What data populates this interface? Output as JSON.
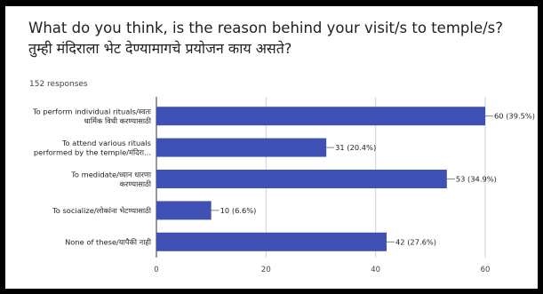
{
  "question": {
    "title_en": "What do you think, is the reason behind your visit/s to temple/s?",
    "title_mr": "तुम्ही मंदिराला भेट देण्यामागचे प्रयोजन काय असते?",
    "responses": "152 responses"
  },
  "chart_data": {
    "type": "bar",
    "orientation": "horizontal",
    "categories": [
      [
        "To perform individual rituals/स्वतः",
        "धार्मिक विधी करण्यासाठी"
      ],
      [
        "To attend various rituals",
        "performed by the temple/मंदिरा..."
      ],
      [
        "To medidate/ध्यान धारणा",
        "करण्यासाठी"
      ],
      [
        "To socialize/लोकांना भेटण्यासाठी"
      ],
      [
        "None of these/यापैकी नाही"
      ]
    ],
    "values": [
      60,
      31,
      53,
      10,
      42
    ],
    "data_labels": [
      "60 (39.5%)",
      "31 (20.4%)",
      "53 (34.9%)",
      "10 (6.6%)",
      "42 (27.6%)"
    ],
    "xticks": [
      0,
      20,
      40,
      60
    ],
    "xlim": [
      0,
      60
    ],
    "grid": true,
    "bar_color": "#3f51b5"
  }
}
